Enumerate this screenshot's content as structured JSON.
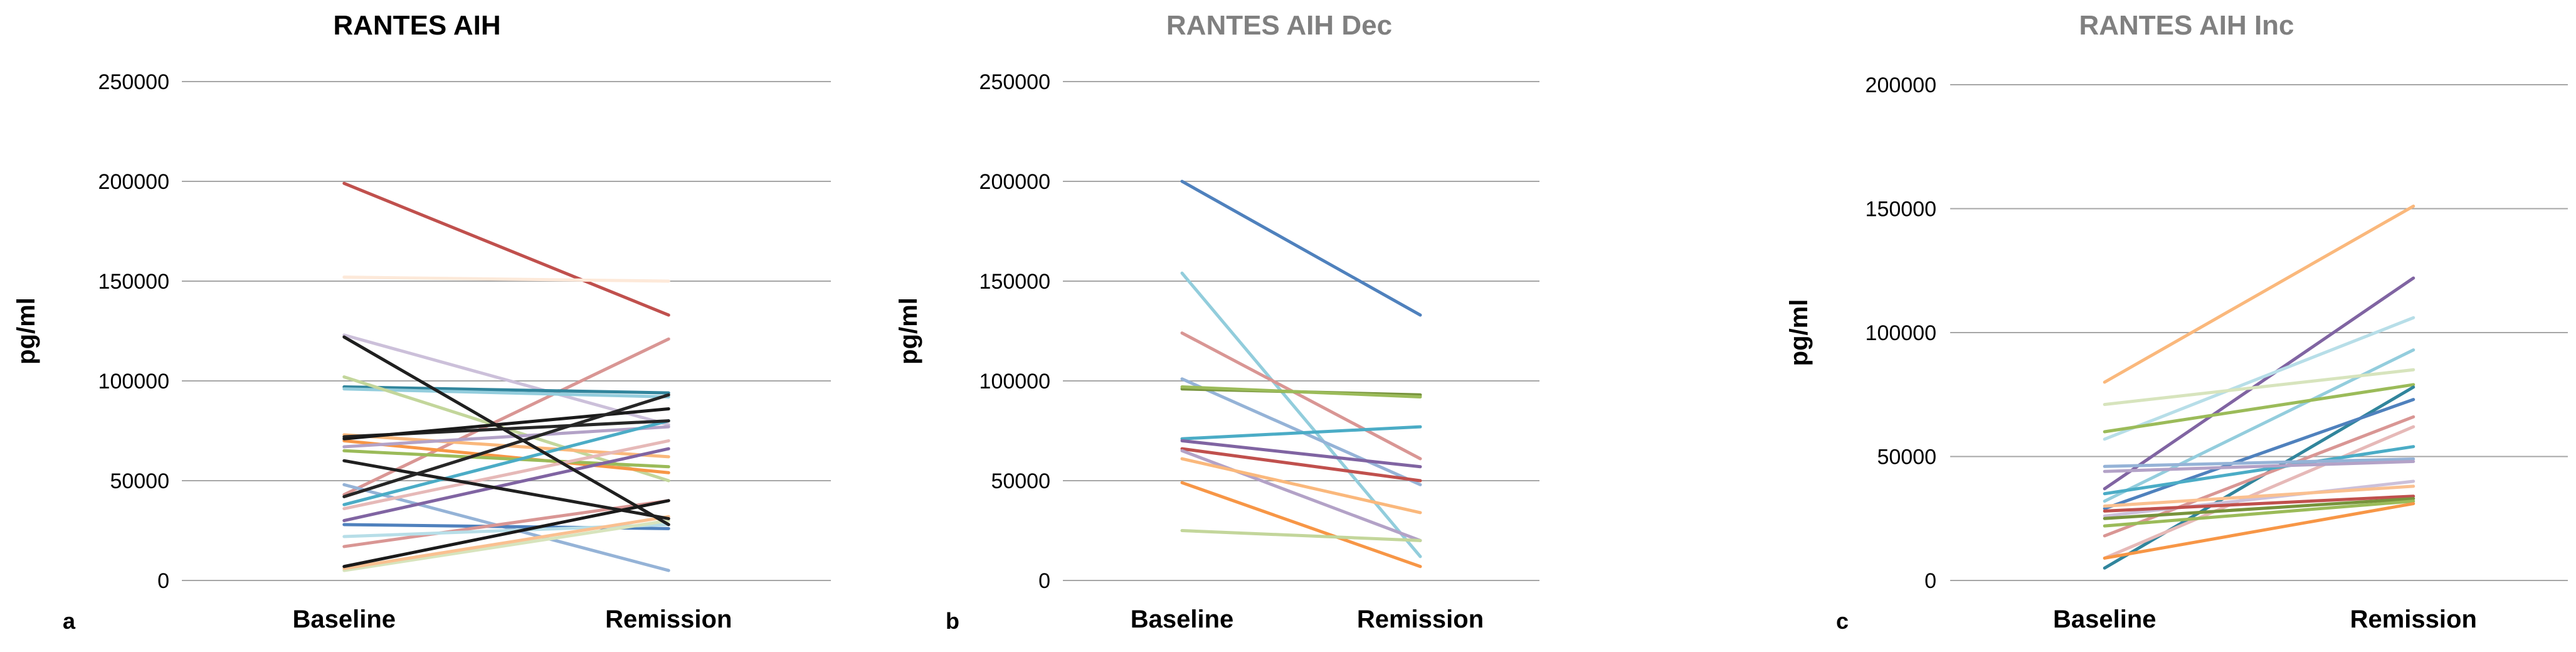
{
  "chart_data": [
    {
      "type": "line",
      "panel_letter": "a",
      "title": "RANTES AIH",
      "title_color": "#000000",
      "ylabel": "pg/ml",
      "xlabel": "",
      "categories": [
        "Baseline",
        "Remission"
      ],
      "ylim": [
        0,
        250000
      ],
      "yticks": [
        0,
        50000,
        100000,
        150000,
        200000,
        250000
      ],
      "ytick_labels": [
        "0",
        "50000",
        "100000",
        "150000",
        "200000",
        "250000"
      ],
      "grid": true,
      "legend": "none",
      "series": [
        {
          "color": "#c0504d",
          "values": [
            199000,
            133000
          ]
        },
        {
          "color": "#fde9d9",
          "values": [
            152000,
            150000
          ]
        },
        {
          "color": "#ccc0da",
          "values": [
            123000,
            78000
          ]
        },
        {
          "color": "#d99694",
          "values": [
            43000,
            121000
          ]
        },
        {
          "color": "#31859c",
          "values": [
            97000,
            94000
          ]
        },
        {
          "color": "#93cddd",
          "values": [
            96000,
            92000
          ]
        },
        {
          "color": "#c3d69b",
          "values": [
            102000,
            50000
          ]
        },
        {
          "color": "#fab87c",
          "values": [
            73000,
            62000
          ]
        },
        {
          "color": "#f79646",
          "values": [
            70000,
            54000
          ]
        },
        {
          "color": "#9bbb59",
          "values": [
            65000,
            57000
          ]
        },
        {
          "color": "#b3a2c7",
          "values": [
            67000,
            77000
          ]
        },
        {
          "color": "#95b3d7",
          "values": [
            48000,
            5000
          ]
        },
        {
          "color": "#4bacc6",
          "values": [
            38000,
            80000
          ]
        },
        {
          "color": "#e6b9b8",
          "values": [
            36000,
            70000
          ]
        },
        {
          "color": "#8064a2",
          "values": [
            30000,
            66000
          ]
        },
        {
          "color": "#4f81bd",
          "values": [
            28000,
            26000
          ]
        },
        {
          "color": "#d99694",
          "values": [
            17000,
            40000
          ]
        },
        {
          "color": "#b7dee8",
          "values": [
            22000,
            28000
          ]
        },
        {
          "color": "#d7e4bd",
          "values": [
            5000,
            30000
          ]
        },
        {
          "color": "#fac090",
          "values": [
            6000,
            32000
          ]
        },
        {
          "color": "#1f1f1f",
          "values": [
            122000,
            28000
          ]
        },
        {
          "color": "#262626",
          "values": [
            72000,
            80000
          ]
        },
        {
          "color": "#1a1a1a",
          "values": [
            71000,
            86000
          ]
        },
        {
          "color": "#1f1f1f",
          "values": [
            60000,
            31000
          ]
        },
        {
          "color": "#262626",
          "values": [
            42000,
            93000
          ]
        },
        {
          "color": "#1a1a1a",
          "values": [
            7000,
            40000
          ]
        }
      ]
    },
    {
      "type": "line",
      "panel_letter": "b",
      "title": "RANTES AIH Dec",
      "title_color": "#808080",
      "ylabel": "pg/ml",
      "xlabel": "",
      "categories": [
        "Baseline",
        "Remission"
      ],
      "ylim": [
        0,
        250000
      ],
      "yticks": [
        0,
        50000,
        100000,
        150000,
        200000,
        250000
      ],
      "ytick_labels": [
        "0",
        "50000",
        "100000",
        "150000",
        "200000",
        "250000"
      ],
      "grid": true,
      "legend": "none",
      "series": [
        {
          "color": "#4f81bd",
          "values": [
            200000,
            133000
          ]
        },
        {
          "color": "#92cddc",
          "values": [
            154000,
            12000
          ]
        },
        {
          "color": "#d99694",
          "values": [
            124000,
            61000
          ]
        },
        {
          "color": "#95b3d7",
          "values": [
            101000,
            48000
          ]
        },
        {
          "color": "#77933c",
          "values": [
            96000,
            93000
          ]
        },
        {
          "color": "#9bbb59",
          "values": [
            97000,
            92000
          ]
        },
        {
          "color": "#4bacc6",
          "values": [
            71000,
            77000
          ]
        },
        {
          "color": "#8064a2",
          "values": [
            70000,
            57000
          ]
        },
        {
          "color": "#c0504d",
          "values": [
            66000,
            50000
          ]
        },
        {
          "color": "#b3a2c7",
          "values": [
            65000,
            20000
          ]
        },
        {
          "color": "#fab87c",
          "values": [
            61000,
            34000
          ]
        },
        {
          "color": "#f79646",
          "values": [
            49000,
            7000
          ]
        },
        {
          "color": "#c3d69b",
          "values": [
            25000,
            20000
          ]
        }
      ]
    },
    {
      "type": "line",
      "panel_letter": "c",
      "title": "RANTES AIH Inc",
      "title_color": "#808080",
      "ylabel": "pg/ml",
      "xlabel": "",
      "categories": [
        "Baseline",
        "Remission"
      ],
      "ylim": [
        0,
        200000
      ],
      "yticks": [
        0,
        50000,
        100000,
        150000,
        200000
      ],
      "ytick_labels": [
        "0",
        "50000",
        "100000",
        "150000",
        "200000"
      ],
      "grid": true,
      "legend": "none",
      "series": [
        {
          "color": "#fab87c",
          "values": [
            80000,
            151000
          ]
        },
        {
          "color": "#8064a2",
          "values": [
            37000,
            122000
          ]
        },
        {
          "color": "#b7dee8",
          "values": [
            57000,
            106000
          ]
        },
        {
          "color": "#93cddd",
          "values": [
            32000,
            93000
          ]
        },
        {
          "color": "#d7e4bd",
          "values": [
            71000,
            85000
          ]
        },
        {
          "color": "#9bbb59",
          "values": [
            60000,
            79000
          ]
        },
        {
          "color": "#31859c",
          "values": [
            5000,
            78000
          ]
        },
        {
          "color": "#4f81bd",
          "values": [
            29000,
            73000
          ]
        },
        {
          "color": "#d99694",
          "values": [
            18000,
            66000
          ]
        },
        {
          "color": "#e6b9b8",
          "values": [
            9000,
            62000
          ]
        },
        {
          "color": "#4bacc6",
          "values": [
            35000,
            54000
          ]
        },
        {
          "color": "#95b3d7",
          "values": [
            46000,
            49000
          ]
        },
        {
          "color": "#b3a2c7",
          "values": [
            44000,
            48000
          ]
        },
        {
          "color": "#ccc0da",
          "values": [
            26000,
            40000
          ]
        },
        {
          "color": "#fac090",
          "values": [
            30000,
            38000
          ]
        },
        {
          "color": "#c0504d",
          "values": [
            28000,
            34000
          ]
        },
        {
          "color": "#77933c",
          "values": [
            25000,
            33000
          ]
        },
        {
          "color": "#9bbb59",
          "values": [
            22000,
            32000
          ]
        },
        {
          "color": "#f79646",
          "values": [
            9000,
            31000
          ]
        }
      ]
    }
  ]
}
